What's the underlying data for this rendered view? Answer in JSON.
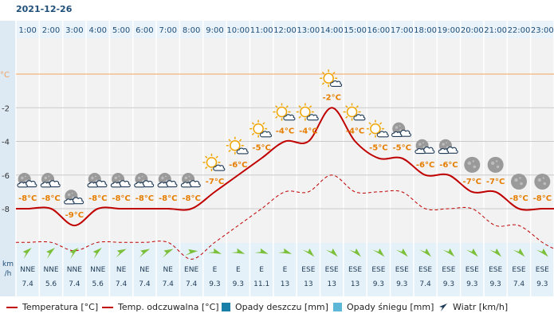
{
  "date": "2021-12-26",
  "chart_data": {
    "type": "line",
    "hours": [
      "1:00",
      "2:00",
      "3:00",
      "4:00",
      "5:00",
      "6:00",
      "7:00",
      "8:00",
      "9:00",
      "10:00",
      "11:00",
      "12:00",
      "13:00",
      "14:00",
      "15:00",
      "16:00",
      "17:00",
      "18:00",
      "19:00",
      "20:00",
      "21:00",
      "22:00",
      "23:00"
    ],
    "temperature": [
      -8,
      -8,
      -9,
      -8,
      -8,
      -8,
      -8,
      -8,
      -7,
      -6,
      -5,
      -4,
      -4,
      -2,
      -4,
      -5,
      -5,
      -6,
      -6,
      -7,
      -7,
      -8,
      -8
    ],
    "temp_labels": [
      "-8°C",
      "-8°C",
      "-9°C",
      "-8°C",
      "-8°C",
      "-8°C",
      "-8°C",
      "-8°C",
      "-7°C",
      "-6°C",
      "-5°C",
      "-4°C",
      "-4°C",
      "-2°C",
      "-4°C",
      "-5°C",
      "-5°C",
      "-6°C",
      "-6°C",
      "-7°C",
      "-7°C",
      "-8°C",
      "-8°C"
    ],
    "feels_like": [
      -10,
      -10,
      -10.5,
      -10,
      -10,
      -10,
      -10,
      -11,
      -10,
      -9,
      -8,
      -7,
      -7,
      -6,
      -7,
      -7,
      -7,
      -8,
      -8,
      -8,
      -9,
      -9,
      -10
    ],
    "y_ticks": [
      0,
      -2,
      -4,
      -6,
      -8
    ],
    "y_tick_labels": [
      "°C",
      "-2",
      "-4",
      "-6",
      "-8"
    ],
    "ylim": [
      -10,
      0.5
    ],
    "wind_label_top": "km",
    "wind_label_bottom": "/h",
    "wind_dir": [
      "NNE",
      "NNE",
      "NNE",
      "NNE",
      "NE",
      "NE",
      "NE",
      "ENE",
      "E",
      "E",
      "E",
      "E",
      "ESE",
      "ESE",
      "ESE",
      "ESE",
      "ESE",
      "ESE",
      "ESE",
      "ESE",
      "ESE",
      "ESE",
      "ESE"
    ],
    "wind_speed": [
      "7.4",
      "5.6",
      "7.4",
      "5.6",
      "7.4",
      "7.4",
      "7.4",
      "7.4",
      "9.3",
      "9.3",
      "11.1",
      "13",
      "13",
      "13",
      "13",
      "9.3",
      "9.3",
      "7.4",
      "9.3",
      "9.3",
      "9.3",
      "7.4",
      "9.3"
    ],
    "wind_angle": [
      30,
      30,
      30,
      30,
      45,
      45,
      45,
      65,
      90,
      90,
      90,
      90,
      115,
      115,
      115,
      115,
      115,
      115,
      115,
      115,
      115,
      115,
      115
    ],
    "icons": [
      "night-cloudy",
      "night-cloudy",
      "night-cloudy",
      "night-cloudy",
      "night-cloudy",
      "night-cloudy",
      "night-cloudy",
      "night-cloudy",
      "day-cloudy",
      "day-cloudy",
      "day-cloudy",
      "day-cloudy",
      "day-cloudy",
      "day-cloudy",
      "day-cloudy",
      "day-cloudy",
      "night-cloudy",
      "night-cloudy",
      "night-cloudy",
      "night-clear",
      "night-clear",
      "night-clear",
      "night-clear"
    ],
    "colors": {
      "temperature": "#c00000",
      "feels_like": "#c00000",
      "grid": "#d6dde4",
      "zero": "#f4a460",
      "labels": "#e67e00"
    }
  },
  "legend": {
    "temp": "Temperatura [°C]",
    "feels": "Temp. odczuwalna [°C]",
    "rain": "Opady deszczu [mm]",
    "snow": "Opady śniegu [mm]",
    "wind": "Wiatr [km/h]",
    "rain_color": "#1a7fa8",
    "snow_color": "#5cb8d6"
  }
}
